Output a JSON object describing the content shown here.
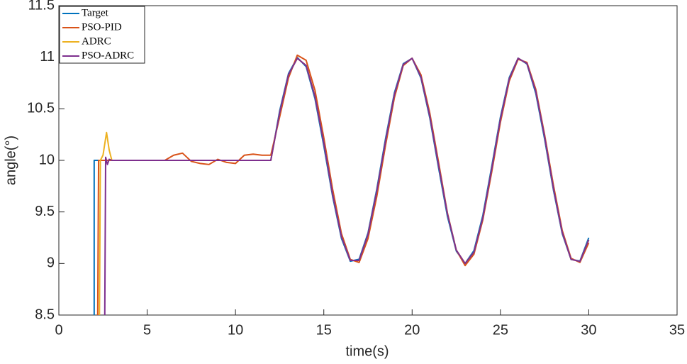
{
  "chart_data": {
    "type": "line",
    "xlabel": "time(s)",
    "ylabel": "angle(°)",
    "xlim": [
      0,
      35
    ],
    "xticks": [
      0,
      5,
      10,
      15,
      20,
      25,
      30,
      35
    ],
    "ylim": [
      8.5,
      11.5
    ],
    "yticks": [
      8.5,
      9,
      9.5,
      10,
      10.5,
      11,
      11.5
    ],
    "legend": "top-left",
    "series": [
      {
        "name": "Target",
        "color": "#0072bd",
        "x": [
          2,
          2,
          12,
          12.5,
          13,
          13.5,
          14,
          14.5,
          15,
          15.5,
          16,
          16.5,
          17,
          17.5,
          18,
          18.5,
          19,
          19.5,
          20,
          20.5,
          21,
          21.5,
          22,
          22.5,
          23,
          23.5,
          24,
          24.5,
          25,
          25.5,
          26,
          26.5,
          27,
          27.5,
          28,
          28.5,
          29,
          29.5,
          30
        ],
        "values": [
          8.5,
          10,
          10,
          10.479,
          10.841,
          10.997,
          10.909,
          10.598,
          10.141,
          9.649,
          9.243,
          9.022,
          9.041,
          9.294,
          9.721,
          10.215,
          10.657,
          10.938,
          10.989,
          10.798,
          10.412,
          9.925,
          9.456,
          9.121,
          9.0,
          9.125,
          9.463,
          9.934,
          10.42,
          10.803,
          10.991,
          10.935,
          10.65,
          10.207,
          9.712,
          9.288,
          9.039,
          9.024,
          9.249
        ]
      },
      {
        "name": "PSO-PID",
        "color": "#d95319",
        "x": [
          2.2,
          2.25,
          2.6,
          6,
          6.5,
          7,
          7.5,
          8,
          8.5,
          9,
          9.5,
          10,
          10.5,
          11,
          11.5,
          12,
          12.5,
          13,
          13.5,
          14,
          14.5,
          15,
          15.5,
          16,
          16.5,
          17,
          17.5,
          18,
          18.5,
          19,
          19.5,
          20,
          20.5,
          21,
          21.5,
          22,
          22.5,
          23,
          23.5,
          24,
          24.5,
          25,
          25.5,
          26,
          26.5,
          27,
          27.5,
          28,
          28.5,
          29,
          29.5,
          30
        ],
        "values": [
          8.5,
          10,
          10,
          10,
          10.05,
          10.07,
          9.99,
          9.97,
          9.96,
          10.01,
          9.98,
          9.97,
          10.05,
          10.06,
          10.05,
          10.05,
          10.42,
          10.8,
          11.02,
          10.97,
          10.68,
          10.22,
          9.72,
          9.29,
          9.04,
          9.01,
          9.24,
          9.65,
          10.15,
          10.61,
          10.92,
          10.99,
          10.83,
          10.46,
          9.98,
          9.49,
          9.13,
          8.98,
          9.09,
          9.42,
          9.88,
          10.37,
          10.77,
          10.98,
          10.95,
          10.69,
          10.25,
          9.76,
          9.32,
          9.05,
          9.01,
          9.2
        ]
      },
      {
        "name": "ADRC",
        "color": "#edb120",
        "x": [
          2.3,
          2.35,
          2.5,
          2.7,
          2.85,
          3,
          12,
          12.5,
          13,
          13.5,
          14,
          14.5,
          15,
          15.5,
          16,
          16.5,
          17,
          17.5,
          18,
          18.5,
          19,
          19.5,
          20,
          20.5,
          21,
          21.5,
          22,
          22.5,
          23,
          23.5,
          24,
          24.5,
          25,
          25.5,
          26,
          26.5,
          27,
          27.5,
          28,
          28.5,
          29,
          29.5,
          30
        ],
        "values": [
          8.5,
          10,
          10.05,
          10.27,
          10.1,
          10,
          10,
          10.46,
          10.83,
          10.99,
          10.92,
          10.62,
          10.17,
          9.67,
          9.26,
          9.03,
          9.03,
          9.28,
          9.7,
          10.19,
          10.64,
          10.93,
          10.99,
          10.81,
          10.43,
          9.95,
          9.48,
          9.13,
          9.0,
          9.11,
          9.44,
          9.91,
          10.4,
          10.79,
          10.99,
          10.94,
          10.67,
          10.23,
          9.73,
          9.3,
          9.04,
          9.02,
          9.23
        ]
      },
      {
        "name": "PSO-ADRC",
        "color": "#7e2f8e",
        "x": [
          2.6,
          2.65,
          2.75,
          2.85,
          3,
          12,
          12.5,
          13,
          13.5,
          14,
          14.5,
          15,
          15.5,
          16,
          16.5,
          17,
          17.5,
          18,
          18.5,
          19,
          19.5,
          20,
          20.5,
          21,
          21.5,
          22,
          22.5,
          23,
          23.5,
          24,
          24.5,
          25,
          25.5,
          26,
          26.5,
          27,
          27.5,
          28,
          28.5,
          29,
          29.5,
          30
        ],
        "values": [
          8.5,
          10.03,
          9.96,
          10.01,
          10,
          10,
          10.46,
          10.83,
          10.99,
          10.92,
          10.62,
          10.17,
          9.67,
          9.26,
          9.03,
          9.03,
          9.28,
          9.7,
          10.19,
          10.64,
          10.93,
          10.99,
          10.81,
          10.43,
          9.95,
          9.48,
          9.13,
          9.0,
          9.11,
          9.44,
          9.91,
          10.4,
          10.79,
          10.99,
          10.94,
          10.67,
          10.23,
          9.73,
          9.3,
          9.04,
          9.02,
          9.23
        ]
      }
    ]
  }
}
